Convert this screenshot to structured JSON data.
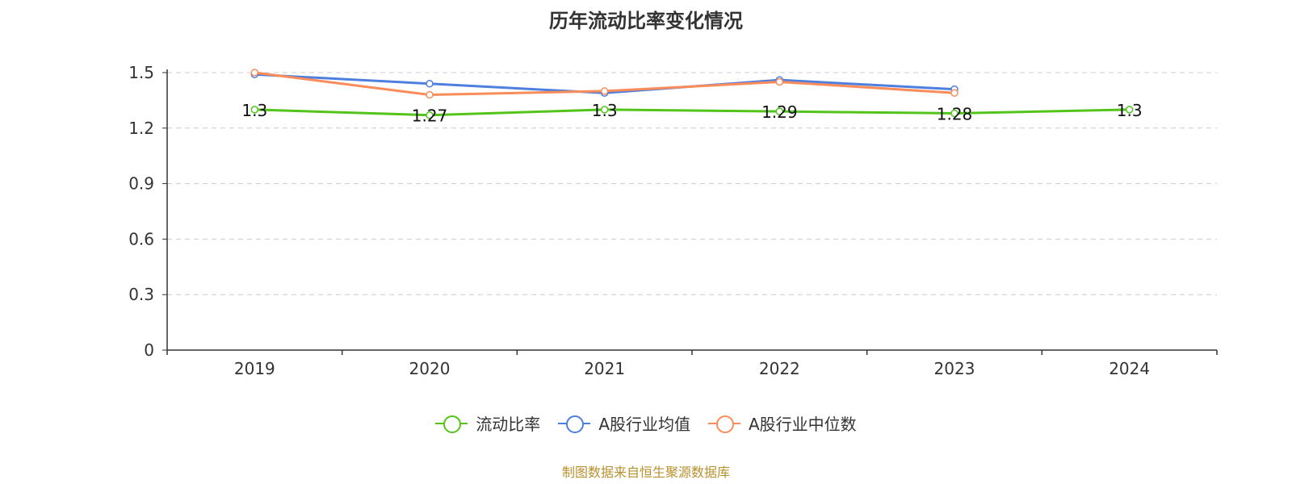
{
  "chart_data": {
    "type": "line",
    "title": "历年流动比率变化情况",
    "categories": [
      "2019",
      "2020",
      "2021",
      "2022",
      "2023",
      "2024"
    ],
    "ylim": [
      0,
      1.5
    ],
    "yticks": [
      "0",
      "0.3",
      "0.6",
      "0.9",
      "1.2",
      "1.5"
    ],
    "grid": true,
    "legend_position": "bottom",
    "series": [
      {
        "name": "流动比率",
        "color": "#52c41a",
        "values": [
          1.3,
          1.27,
          1.3,
          1.29,
          1.28,
          1.3
        ],
        "labels": [
          "1.3",
          "1.27",
          "1.3",
          "1.29",
          "1.28",
          "1.3"
        ]
      },
      {
        "name": "A股行业均值",
        "color": "#4e7fdf",
        "values": [
          1.49,
          1.44,
          1.39,
          1.46,
          1.41,
          null
        ]
      },
      {
        "name": "A股行业中位数",
        "color": "#fa8c5a",
        "values": [
          1.5,
          1.38,
          1.4,
          1.45,
          1.39,
          null
        ]
      }
    ]
  },
  "source_text": "制图数据来自恒生聚源数据库"
}
